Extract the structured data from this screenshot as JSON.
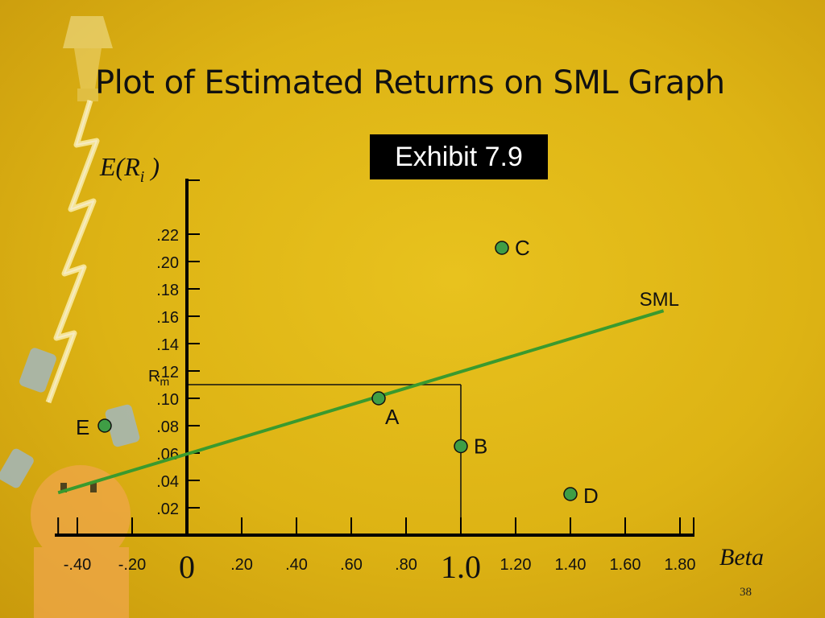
{
  "slide": {
    "title": "Plot of Estimated Returns on SML Graph",
    "exhibit_label": "Exhibit 7.9",
    "slide_number": "38"
  },
  "colors": {
    "background": "#ddb314",
    "sml_line": "#3a9a2e",
    "point_fill": "#3f9e45",
    "axis": "#000000"
  },
  "chart_data": {
    "type": "scatter",
    "ylabel_main": "E(R",
    "ylabel_sub": "i",
    "ylabel_close": " )",
    "xlabel": "Beta",
    "xlim": [
      -0.45,
      1.9
    ],
    "ylim": [
      0,
      0.235
    ],
    "y_ticks": [
      {
        "label": ".02",
        "value": 0.02
      },
      {
        "label": ".04",
        "value": 0.04
      },
      {
        "label": ".06",
        "value": 0.06
      },
      {
        "label": ".08",
        "value": 0.08
      },
      {
        "label": ".10",
        "value": 0.1
      },
      {
        "label": ".12",
        "value": 0.12
      },
      {
        "label": ".14",
        "value": 0.14
      },
      {
        "label": ".16",
        "value": 0.16
      },
      {
        "label": ".18",
        "value": 0.18
      },
      {
        "label": ".20",
        "value": 0.2
      },
      {
        "label": ".22",
        "value": 0.22
      }
    ],
    "x_ticks": [
      {
        "label": "-.40",
        "value": -0.4,
        "large": false
      },
      {
        "label": "-.20",
        "value": -0.2,
        "large": false
      },
      {
        "label": "0",
        "value": 0,
        "large": true
      },
      {
        "label": ".20",
        "value": 0.2,
        "large": false
      },
      {
        "label": ".40",
        "value": 0.4,
        "large": false
      },
      {
        "label": ".60",
        "value": 0.6,
        "large": false
      },
      {
        "label": ".80",
        "value": 0.8,
        "large": false
      },
      {
        "label": "1.0",
        "value": 1.0,
        "large": true
      },
      {
        "label": "1.20",
        "value": 1.2,
        "large": false
      },
      {
        "label": "1.40",
        "value": 1.4,
        "large": false
      },
      {
        "label": "1.60",
        "value": 1.6,
        "large": false
      },
      {
        "label": "1.80",
        "value": 1.8,
        "large": false
      }
    ],
    "rm": {
      "label_main": "R",
      "label_sub": "m",
      "value": 0.11,
      "beta": 1.0
    },
    "sml": {
      "name": "SML",
      "from": [
        -0.47,
        0.031
      ],
      "to": [
        1.74,
        0.164
      ]
    },
    "points": [
      {
        "name": "A",
        "x": 0.7,
        "y": 0.1
      },
      {
        "name": "B",
        "x": 1.0,
        "y": 0.065
      },
      {
        "name": "C",
        "x": 1.15,
        "y": 0.21
      },
      {
        "name": "D",
        "x": 1.4,
        "y": 0.03
      },
      {
        "name": "E",
        "x": -0.3,
        "y": 0.08
      }
    ]
  }
}
